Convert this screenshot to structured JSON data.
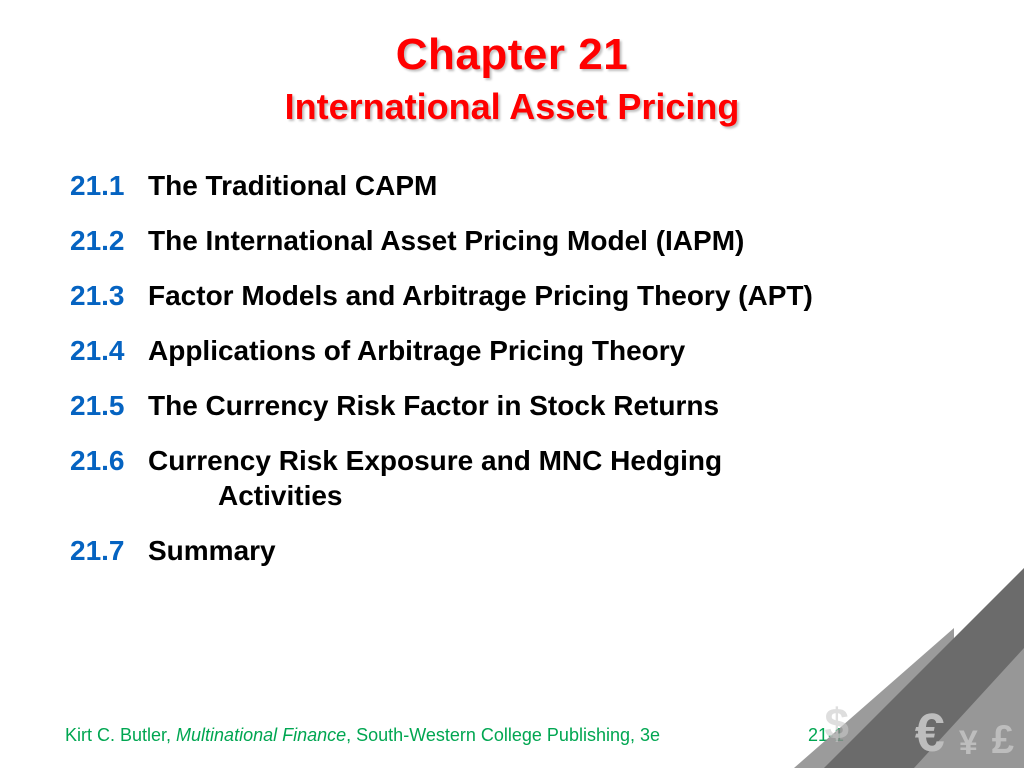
{
  "title": {
    "line1": "Chapter 21",
    "line2": "International Asset Pricing",
    "color": "#ff0000",
    "fontsize_line1": 44,
    "fontsize_line2": 36
  },
  "outline": {
    "number_color": "#0563c1",
    "text_color": "#000000",
    "fontsize": 28,
    "items": [
      {
        "num": "21.1",
        "text": "The Traditional CAPM"
      },
      {
        "num": "21.2",
        "text": "The International Asset Pricing Model (IAPM)"
      },
      {
        "num": "21.3",
        "text": "Factor Models and Arbitrage Pricing Theory (APT)"
      },
      {
        "num": "21.4",
        "text": "Applications of Arbitrage Pricing Theory"
      },
      {
        "num": "21.5",
        "text": "The Currency Risk Factor in Stock Returns"
      },
      {
        "num": "21.6",
        "text": "Currency Risk Exposure and MNC Hedging Activities"
      },
      {
        "num": "21.7",
        "text": "Summary"
      }
    ]
  },
  "footer": {
    "author": "Kirt C. Butler, ",
    "book": "Multinational Finance",
    "publisher": ", South-Western College Publishing, 3e",
    "page": "21-1",
    "color": "#00a651",
    "fontsize": 18
  },
  "decoration": {
    "triangle_colors": [
      "#6b6b6b",
      "#8a8a8a",
      "#9c9c9c"
    ],
    "symbol_color": "#bdbdbd",
    "symbols": {
      "dollar": "$",
      "euro": "€",
      "yen": "¥",
      "pound": "£"
    }
  },
  "background_color": "#ffffff"
}
